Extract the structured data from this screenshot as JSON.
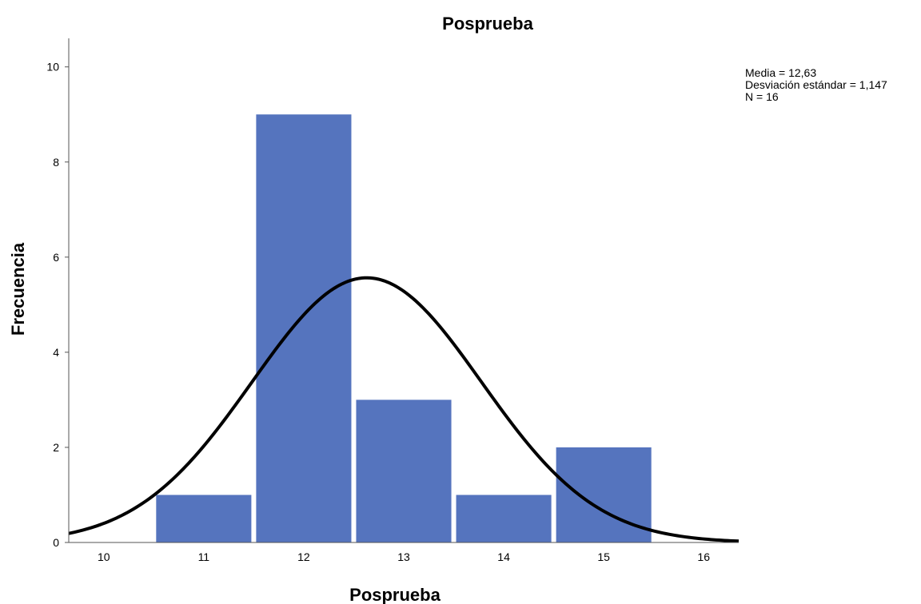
{
  "chart_data": {
    "type": "bar",
    "title": "Posprueba",
    "xlabel": "Posprueba",
    "ylabel": "Frecuencia",
    "categories": [
      "11",
      "12",
      "13",
      "14",
      "15"
    ],
    "bins": [
      {
        "center": 11,
        "count": 1
      },
      {
        "center": 12,
        "count": 9
      },
      {
        "center": 13,
        "count": 3
      },
      {
        "center": 14,
        "count": 1
      },
      {
        "center": 15,
        "count": 2
      }
    ],
    "xlim": [
      9.65,
      16.35
    ],
    "ylim": [
      0,
      10.6
    ],
    "x_ticks": [
      "10",
      "11",
      "12",
      "13",
      "14",
      "15",
      "16"
    ],
    "y_ticks": [
      "0",
      "2",
      "4",
      "6",
      "8",
      "10"
    ],
    "normal_curve": {
      "mean": 12.63,
      "sd": 1.147,
      "n": 16,
      "bin_width": 1
    },
    "stats_lines": [
      "Media = 12,63",
      "Desviación estándar = 1,147",
      "N = 16"
    ],
    "bar_color": "#5574be",
    "curve_color": "#000000",
    "grid": false,
    "legend": "none"
  }
}
